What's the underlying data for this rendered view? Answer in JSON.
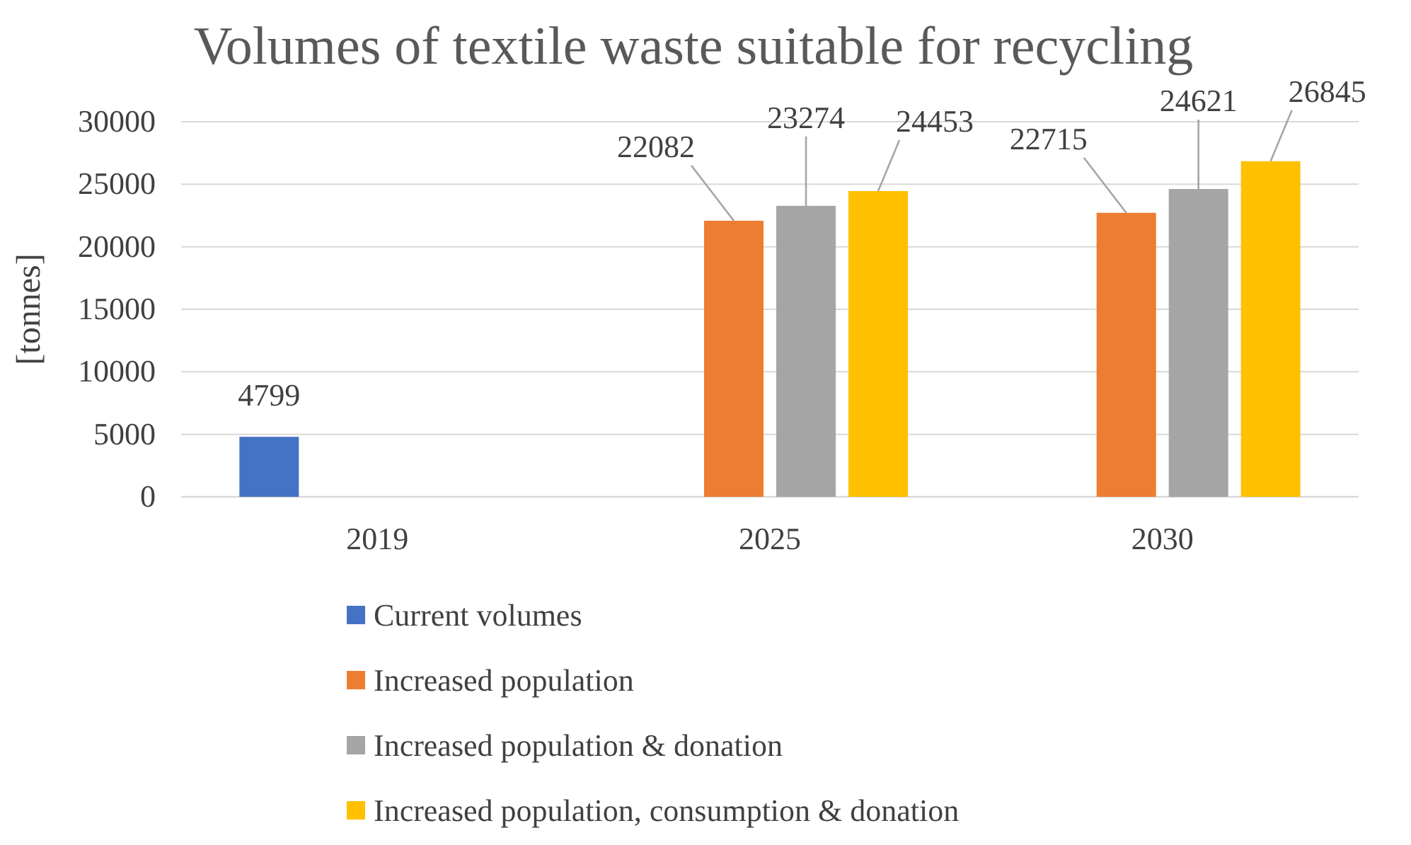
{
  "chart_data": {
    "type": "bar",
    "title": "Volumes of textile waste suitable for recycling",
    "ylabel": "[tonnes]",
    "categories": [
      "2019",
      "2025",
      "2030"
    ],
    "series": [
      {
        "name": "Current volumes",
        "color": "#4472c4",
        "values": [
          4799,
          null,
          null
        ]
      },
      {
        "name": "Increased population",
        "color": "#ed7d31",
        "values": [
          null,
          22082,
          22715
        ]
      },
      {
        "name": "Increased population & donation",
        "color": "#a5a5a5",
        "values": [
          null,
          23274,
          24621
        ]
      },
      {
        "name": "Increased population, consumption & donation",
        "color": "#ffc000",
        "values": [
          null,
          24453,
          26845
        ]
      }
    ],
    "ylim": [
      0,
      30000
    ],
    "yticks": [
      0,
      5000,
      10000,
      15000,
      20000,
      25000,
      30000
    ],
    "grid": "y",
    "legend": "bottom",
    "data_labels": true
  }
}
